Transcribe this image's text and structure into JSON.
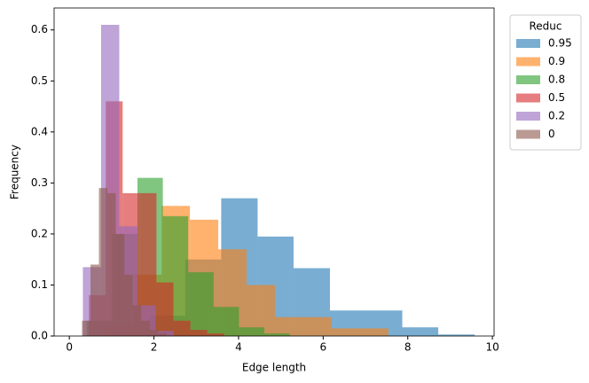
{
  "chart_data": {
    "type": "histogram",
    "xlabel": "Edge length",
    "ylabel": "Frequency",
    "legend_title": "Reduc",
    "legend": "upper right outside",
    "xlim": [
      -0.36,
      10.04
    ],
    "ylim": [
      0,
      0.643
    ],
    "xticks": [
      0,
      2,
      4,
      6,
      8,
      10
    ],
    "yticks": [
      {
        "value": 0,
        "label": "0.0"
      },
      {
        "value": 0.1,
        "label": "0.1"
      },
      {
        "value": 0.2,
        "label": "0.2"
      },
      {
        "value": 0.3,
        "label": "0.3"
      },
      {
        "value": 0.4,
        "label": "0.4"
      },
      {
        "value": 0.5,
        "label": "0.5"
      },
      {
        "value": 0.6,
        "label": "0.6"
      }
    ],
    "series": [
      {
        "name": "0.95",
        "color": "#1f77b4",
        "bins": [
          1.03,
          1.88,
          2.74,
          3.59,
          4.45,
          5.3,
          6.16,
          7.01,
          7.87,
          8.72,
          9.58
        ],
        "values": [
          0.005,
          0.04,
          0.15,
          0.27,
          0.195,
          0.133,
          0.05,
          0.05,
          0.017,
          0.003
        ]
      },
      {
        "name": "0.9",
        "color": "#ff7f0e",
        "bins": [
          0.84,
          1.51,
          2.18,
          2.85,
          3.52,
          4.19,
          4.86,
          5.53,
          6.2,
          6.87,
          7.54
        ],
        "values": [
          0.02,
          0.12,
          0.255,
          0.228,
          0.17,
          0.1,
          0.037,
          0.037,
          0.015,
          0.015
        ]
      },
      {
        "name": "0.8",
        "color": "#2ca02c",
        "bins": [
          0.41,
          1.01,
          1.61,
          2.21,
          2.81,
          3.41,
          4.01,
          4.61,
          5.21
        ],
        "values": [
          0.03,
          0.2,
          0.31,
          0.235,
          0.125,
          0.057,
          0.017,
          0.005
        ]
      },
      {
        "name": "0.5",
        "color": "#d62728",
        "bins": [
          0.46,
          0.86,
          1.26,
          1.66,
          2.06,
          2.46,
          2.86,
          3.26,
          3.66
        ],
        "values": [
          0.08,
          0.46,
          0.28,
          0.28,
          0.105,
          0.03,
          0.012,
          0.005
        ]
      },
      {
        "name": "0.2",
        "color": "#9467bd",
        "bins": [
          0.32,
          0.75,
          1.18,
          1.61,
          2.04,
          2.47
        ],
        "values": [
          0.135,
          0.61,
          0.215,
          0.06,
          0.01
        ]
      },
      {
        "name": "0",
        "color": "#8c564b",
        "bins": [
          0.3,
          0.5,
          0.7,
          0.9,
          1.1,
          1.3,
          1.5,
          1.7,
          1.9,
          2.1,
          2.3
        ],
        "values": [
          0.03,
          0.14,
          0.29,
          0.28,
          0.2,
          0.12,
          0.06,
          0.03,
          0.012,
          0.005
        ]
      }
    ]
  }
}
